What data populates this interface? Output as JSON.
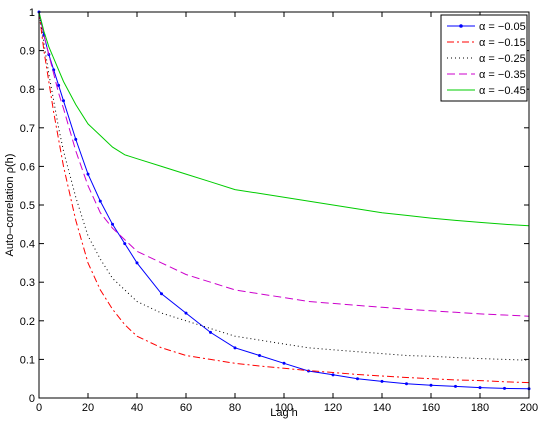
{
  "chart_data": {
    "type": "line",
    "title": "",
    "xlabel": "Lag h",
    "ylabel": "Auto–correlation ρ(h)",
    "xlim": [
      0,
      200
    ],
    "ylim": [
      0,
      1
    ],
    "xticks": [
      0,
      20,
      40,
      60,
      80,
      100,
      120,
      140,
      160,
      180,
      200
    ],
    "yticks": [
      0,
      0.1,
      0.2,
      0.3,
      0.4,
      0.5,
      0.6,
      0.7,
      0.8,
      0.9,
      1
    ],
    "xtick_labels": [
      "0",
      "20",
      "40",
      "60",
      "80",
      "100",
      "120",
      "140",
      "160",
      "180",
      "200"
    ],
    "ytick_labels": [
      "0",
      "0.1",
      "0.2",
      "0.3",
      "0.4",
      "0.5",
      "0.6",
      "0.7",
      "0.8",
      "0.9",
      "1"
    ],
    "grid": false,
    "legend_position": "top-right",
    "x": [
      0,
      2,
      4,
      6,
      8,
      10,
      15,
      20,
      25,
      30,
      35,
      40,
      50,
      60,
      70,
      80,
      90,
      100,
      110,
      120,
      130,
      140,
      150,
      160,
      170,
      180,
      190,
      200
    ],
    "series": [
      {
        "name": "α = −0.05",
        "color": "#0000ff",
        "style": "solid-dot",
        "values": [
          1.0,
          0.94,
          0.89,
          0.85,
          0.81,
          0.77,
          0.67,
          0.58,
          0.51,
          0.45,
          0.4,
          0.35,
          0.27,
          0.22,
          0.17,
          0.13,
          0.11,
          0.09,
          0.07,
          0.06,
          0.05,
          0.043,
          0.037,
          0.033,
          0.03,
          0.027,
          0.025,
          0.024
        ]
      },
      {
        "name": "α = −0.15",
        "color": "#ff0000",
        "style": "dashdot",
        "values": [
          1.0,
          0.9,
          0.82,
          0.74,
          0.67,
          0.6,
          0.46,
          0.35,
          0.28,
          0.23,
          0.19,
          0.16,
          0.13,
          0.11,
          0.1,
          0.09,
          0.083,
          0.077,
          0.071,
          0.066,
          0.061,
          0.057,
          0.053,
          0.05,
          0.047,
          0.045,
          0.042,
          0.04
        ]
      },
      {
        "name": "α = −0.25",
        "color": "#000000",
        "style": "dotted",
        "values": [
          1.0,
          0.92,
          0.84,
          0.77,
          0.7,
          0.64,
          0.52,
          0.42,
          0.36,
          0.31,
          0.28,
          0.25,
          0.22,
          0.2,
          0.18,
          0.16,
          0.15,
          0.14,
          0.13,
          0.125,
          0.12,
          0.115,
          0.11,
          0.108,
          0.105,
          0.102,
          0.1,
          0.098
        ]
      },
      {
        "name": "α = −0.35",
        "color": "#cc00cc",
        "style": "dashed",
        "values": [
          1.0,
          0.94,
          0.89,
          0.84,
          0.79,
          0.75,
          0.64,
          0.55,
          0.48,
          0.44,
          0.41,
          0.38,
          0.35,
          0.32,
          0.3,
          0.28,
          0.27,
          0.26,
          0.25,
          0.245,
          0.24,
          0.235,
          0.23,
          0.226,
          0.222,
          0.218,
          0.215,
          0.212
        ]
      },
      {
        "name": "α = −0.45",
        "color": "#00cc00",
        "style": "solid",
        "values": [
          1.0,
          0.95,
          0.91,
          0.88,
          0.85,
          0.82,
          0.76,
          0.71,
          0.68,
          0.65,
          0.63,
          0.62,
          0.6,
          0.58,
          0.56,
          0.54,
          0.53,
          0.52,
          0.51,
          0.5,
          0.49,
          0.48,
          0.473,
          0.466,
          0.46,
          0.455,
          0.45,
          0.446
        ]
      }
    ]
  }
}
